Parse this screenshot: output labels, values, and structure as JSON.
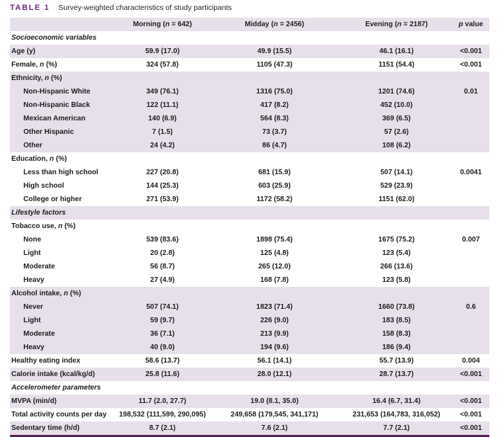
{
  "title": {
    "label": "TABLE 1",
    "caption": "Survey-weighted characteristics of study participants"
  },
  "colors": {
    "accent_purple": "#6e2b7c",
    "row_shade": "#e7e0ea",
    "bottom_rule": "#562458"
  },
  "table": {
    "columns": [
      "",
      "Morning (n = 642)",
      "Midday (n = 2456)",
      "Evening (n = 2187)",
      "p value"
    ],
    "rows": [
      {
        "type": "section",
        "label": "Socioeconomic variables",
        "shaded": false
      },
      {
        "type": "data",
        "label": "Age (y)",
        "indent": false,
        "values": [
          "59.9 (17.0)",
          "49.9 (15.5)",
          "46.1 (16.1)"
        ],
        "p": "<0.001",
        "shaded": true
      },
      {
        "type": "data",
        "label": "Female, n (%)",
        "indent": false,
        "values": [
          "324 (57.8)",
          "1105 (47.3)",
          "1151 (54.4)"
        ],
        "p": "<0.001",
        "shaded": false
      },
      {
        "type": "data",
        "label": "Ethnicity, n (%)",
        "indent": false,
        "values": [
          "",
          "",
          ""
        ],
        "p": "",
        "shaded": true
      },
      {
        "type": "data",
        "label": "Non-Hispanic White",
        "indent": true,
        "values": [
          "349 (76.1)",
          "1316 (75.0)",
          "1201 (74.6)"
        ],
        "p": "0.01",
        "shaded": true
      },
      {
        "type": "data",
        "label": "Non-Hispanic Black",
        "indent": true,
        "values": [
          "122 (11.1)",
          "417 (8.2)",
          "452 (10.0)"
        ],
        "p": "",
        "shaded": true
      },
      {
        "type": "data",
        "label": "Mexican American",
        "indent": true,
        "values": [
          "140 (6.9)",
          "564 (8.3)",
          "369 (6.5)"
        ],
        "p": "",
        "shaded": true
      },
      {
        "type": "data",
        "label": "Other Hispanic",
        "indent": true,
        "values": [
          "7 (1.5)",
          "73 (3.7)",
          "57 (2.6)"
        ],
        "p": "",
        "shaded": true
      },
      {
        "type": "data",
        "label": "Other",
        "indent": true,
        "values": [
          "24 (4.2)",
          "86 (4.7)",
          "108 (6.2)"
        ],
        "p": "",
        "shaded": true
      },
      {
        "type": "data",
        "label": "Education, n (%)",
        "indent": false,
        "values": [
          "",
          "",
          ""
        ],
        "p": "",
        "shaded": false
      },
      {
        "type": "data",
        "label": "Less than high school",
        "indent": true,
        "values": [
          "227 (20.8)",
          "681 (15.9)",
          "507 (14.1)"
        ],
        "p": "0.0041",
        "shaded": false
      },
      {
        "type": "data",
        "label": "High school",
        "indent": true,
        "values": [
          "144 (25.3)",
          "603 (25.9)",
          "529 (23.9)"
        ],
        "p": "",
        "shaded": false
      },
      {
        "type": "data",
        "label": "College or higher",
        "indent": true,
        "values": [
          "271 (53.9)",
          "1172 (58.2)",
          "1151 (62.0)"
        ],
        "p": "",
        "shaded": false
      },
      {
        "type": "section",
        "label": "Lifestyle factors",
        "shaded": true
      },
      {
        "type": "data",
        "label": "Tobacco use, n (%)",
        "indent": false,
        "values": [
          "",
          "",
          ""
        ],
        "p": "",
        "shaded": false
      },
      {
        "type": "data",
        "label": "None",
        "indent": true,
        "values": [
          "539 (83.6)",
          "1898 (75.4)",
          "1675 (75.2)"
        ],
        "p": "0.007",
        "shaded": false
      },
      {
        "type": "data",
        "label": "Light",
        "indent": true,
        "values": [
          "20 (2.8)",
          "125 (4.8)",
          "123 (5.4)"
        ],
        "p": "",
        "shaded": false
      },
      {
        "type": "data",
        "label": "Moderate",
        "indent": true,
        "values": [
          "56 (8.7)",
          "265 (12.0)",
          "266 (13.6)"
        ],
        "p": "",
        "shaded": false
      },
      {
        "type": "data",
        "label": "Heavy",
        "indent": true,
        "values": [
          "27 (4.9)",
          "168 (7.8)",
          "123 (5.8)"
        ],
        "p": "",
        "shaded": false
      },
      {
        "type": "data",
        "label": "Alcohol intake, n (%)",
        "indent": false,
        "values": [
          "",
          "",
          ""
        ],
        "p": "",
        "shaded": true
      },
      {
        "type": "data",
        "label": "Never",
        "indent": true,
        "values": [
          "507 (74.1)",
          "1823 (71.4)",
          "1660 (73.8)"
        ],
        "p": "0.6",
        "shaded": true
      },
      {
        "type": "data",
        "label": "Light",
        "indent": true,
        "values": [
          "59 (9.7)",
          "226 (9.0)",
          "183 (8.5)"
        ],
        "p": "",
        "shaded": true
      },
      {
        "type": "data",
        "label": "Moderate",
        "indent": true,
        "values": [
          "36 (7.1)",
          "213 (9.9)",
          "158 (8.3)"
        ],
        "p": "",
        "shaded": true
      },
      {
        "type": "data",
        "label": "Heavy",
        "indent": true,
        "values": [
          "40 (9.0)",
          "194 (9.6)",
          "186 (9.4)"
        ],
        "p": "",
        "shaded": true
      },
      {
        "type": "data",
        "label": "Healthy eating index",
        "indent": false,
        "values": [
          "58.6 (13.7)",
          "56.1 (14.1)",
          "55.7 (13.9)"
        ],
        "p": "0.004",
        "shaded": false
      },
      {
        "type": "data",
        "label": "Calorie intake (kcal/kg/d)",
        "indent": false,
        "values": [
          "25.8 (11.6)",
          "28.0 (12.1)",
          "28.7 (13.7)"
        ],
        "p": "<0.001",
        "shaded": true
      },
      {
        "type": "section",
        "label": "Accelerometer parameters",
        "shaded": false
      },
      {
        "type": "data",
        "label": "MVPA (min/d)",
        "indent": false,
        "values": [
          "11.7 (2.0, 27.7)",
          "19.0 (8.1, 35.0)",
          "16.4 (6.7, 31.4)"
        ],
        "p": "<0.001",
        "shaded": true
      },
      {
        "type": "data",
        "label": "Total activity counts per day",
        "indent": false,
        "values": [
          "198,532 (111,599, 290,095)",
          "249,658 (179,545, 341,171)",
          "231,653 (164,783, 316,052)"
        ],
        "p": "<0.001",
        "shaded": false
      },
      {
        "type": "data",
        "label": "Sedentary time (h/d)",
        "indent": false,
        "values": [
          "8.7 (2.1)",
          "7.6 (2.1)",
          "7.7 (2.1)"
        ],
        "p": "<0.001",
        "shaded": true
      }
    ]
  }
}
